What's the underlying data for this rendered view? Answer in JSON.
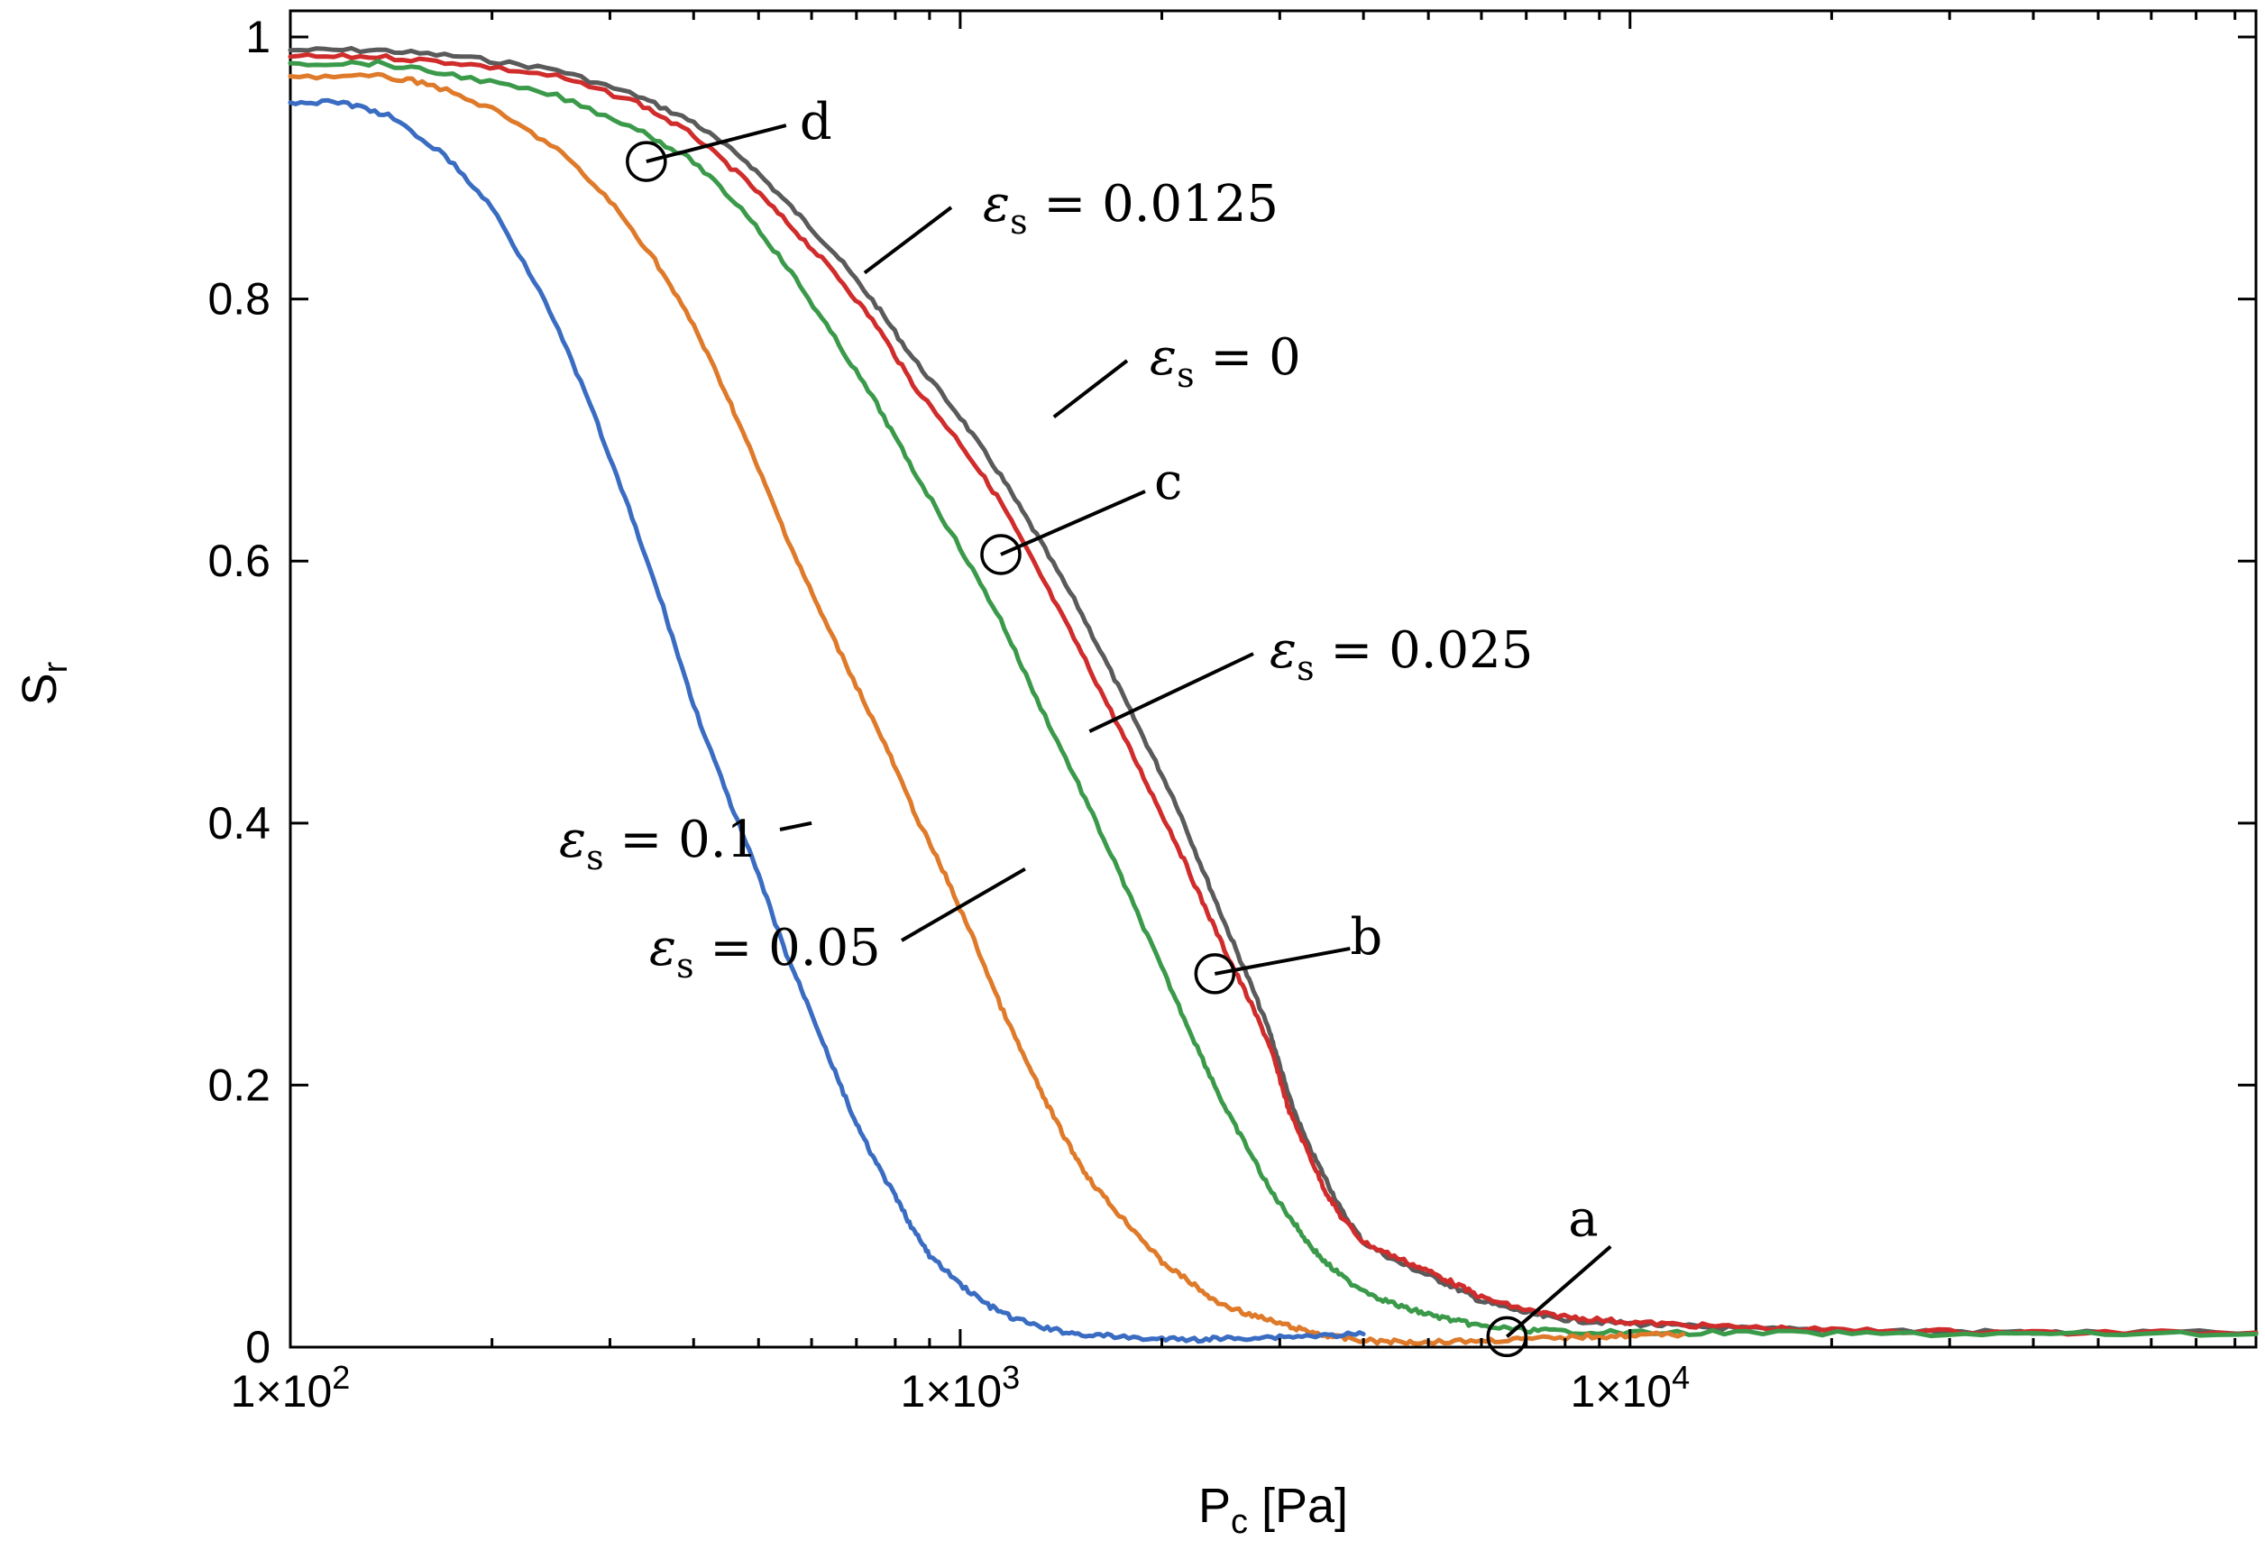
{
  "chart_data": {
    "type": "line",
    "title": "",
    "xlabel": "P",
    "xlabel_sub": "c",
    "xlabel_unit": " [Pa]",
    "ylabel": "S",
    "ylabel_sub": "r",
    "xscale": "log",
    "xlim": [
      100,
      86000
    ],
    "ylim": [
      0,
      1.02
    ],
    "grid": false,
    "legend": "none",
    "x_ticks": [
      {
        "value": 100,
        "base": "1×10",
        "exp": "2"
      },
      {
        "value": 1000,
        "base": "1×10",
        "exp": "3"
      },
      {
        "value": 10000,
        "base": "1×10",
        "exp": "4"
      }
    ],
    "y_ticks": [
      {
        "value": 0,
        "label": "0"
      },
      {
        "value": 0.2,
        "label": "0.2"
      },
      {
        "value": 0.4,
        "label": "0.4"
      },
      {
        "value": 0.6,
        "label": "0.6"
      },
      {
        "value": 0.8,
        "label": "0.8"
      },
      {
        "value": 1,
        "label": "1"
      }
    ],
    "series": [
      {
        "name": "εs = 0",
        "color": "#5a5a5a",
        "x": [
          100,
          135,
          180,
          250,
          330,
          400,
          480,
          560,
          650,
          750,
          850,
          1000,
          1150,
          1300,
          1500,
          1700,
          1900,
          2100,
          2300,
          2500,
          2700,
          2900,
          3000,
          3100,
          3300,
          3500,
          3700,
          4000,
          4500,
          5000,
          5500,
          6000,
          6800,
          7500,
          8500,
          10000,
          12000,
          15000,
          20000,
          30000,
          45000,
          86000
        ],
        "y": [
          0.99,
          0.99,
          0.985,
          0.975,
          0.955,
          0.935,
          0.905,
          0.87,
          0.835,
          0.795,
          0.755,
          0.71,
          0.665,
          0.62,
          0.565,
          0.51,
          0.46,
          0.415,
          0.365,
          0.32,
          0.28,
          0.24,
          0.215,
          0.19,
          0.155,
          0.13,
          0.105,
          0.08,
          0.065,
          0.055,
          0.045,
          0.035,
          0.028,
          0.023,
          0.02,
          0.018,
          0.016,
          0.014,
          0.013,
          0.012,
          0.011,
          0.011
        ]
      },
      {
        "name": "εs = 0.0125",
        "color": "#d02c2c",
        "x": [
          100,
          135,
          180,
          250,
          330,
          400,
          480,
          560,
          650,
          750,
          850,
          1000,
          1150,
          1300,
          1500,
          1700,
          1900,
          2100,
          2300,
          2500,
          2700,
          2900,
          3000,
          3100,
          3300,
          3500,
          3700,
          4000,
          4500,
          5000,
          5500,
          6000,
          6800,
          7500,
          8500,
          10000,
          12000,
          15000,
          20000,
          30000,
          45000,
          86000
        ],
        "y": [
          0.985,
          0.985,
          0.98,
          0.97,
          0.95,
          0.925,
          0.89,
          0.855,
          0.82,
          0.78,
          0.735,
          0.69,
          0.645,
          0.595,
          0.535,
          0.48,
          0.43,
          0.385,
          0.34,
          0.3,
          0.265,
          0.23,
          0.205,
          0.18,
          0.15,
          0.12,
          0.1,
          0.08,
          0.068,
          0.058,
          0.048,
          0.038,
          0.03,
          0.025,
          0.022,
          0.019,
          0.017,
          0.015,
          0.013,
          0.012,
          0.011,
          0.011
        ]
      },
      {
        "name": "εs = 0.025",
        "color": "#3a9a4a",
        "x": [
          100,
          135,
          180,
          250,
          330,
          400,
          480,
          560,
          650,
          750,
          850,
          1000,
          1150,
          1300,
          1500,
          1700,
          1900,
          2100,
          2300,
          2500,
          2700,
          2900,
          3100,
          3300,
          3500,
          3800,
          4200,
          4600,
          5000,
          5500,
          6000,
          7000,
          8000,
          10000,
          15000,
          25000,
          45000,
          86000
        ],
        "y": [
          0.98,
          0.98,
          0.97,
          0.955,
          0.93,
          0.905,
          0.865,
          0.82,
          0.77,
          0.72,
          0.67,
          0.61,
          0.555,
          0.495,
          0.43,
          0.37,
          0.315,
          0.265,
          0.22,
          0.18,
          0.15,
          0.12,
          0.1,
          0.08,
          0.065,
          0.05,
          0.038,
          0.03,
          0.025,
          0.02,
          0.016,
          0.013,
          0.012,
          0.011,
          0.011,
          0.01,
          0.01,
          0.01
        ]
      },
      {
        "name": "εs = 0.05",
        "color": "#de7a2a",
        "x": [
          100,
          135,
          160,
          200,
          250,
          300,
          350,
          400,
          450,
          500,
          560,
          620,
          700,
          780,
          860,
          950,
          1050,
          1150,
          1250,
          1350,
          1450,
          1550,
          1700,
          1850,
          2000,
          2200,
          2400,
          2700,
          3000,
          3300,
          3600,
          4000,
          4500,
          5000,
          6000,
          7000,
          8500,
          10000,
          12000
        ],
        "y": [
          0.97,
          0.97,
          0.965,
          0.945,
          0.915,
          0.875,
          0.83,
          0.78,
          0.725,
          0.67,
          0.61,
          0.56,
          0.505,
          0.455,
          0.405,
          0.36,
          0.31,
          0.26,
          0.22,
          0.185,
          0.155,
          0.13,
          0.105,
          0.085,
          0.065,
          0.05,
          0.035,
          0.025,
          0.018,
          0.012,
          0.008,
          0.005,
          0.004,
          0.004,
          0.005,
          0.006,
          0.008,
          0.009,
          0.01
        ]
      },
      {
        "name": "εs = 0.1",
        "color": "#3a6cc2",
        "x": [
          100,
          120,
          140,
          170,
          200,
          240,
          280,
          320,
          360,
          400,
          450,
          500,
          550,
          600,
          650,
          700,
          750,
          800,
          850,
          900,
          1000,
          1100,
          1200,
          1350,
          1500,
          1700,
          2000,
          2300,
          2600,
          3000,
          3500,
          4000
        ],
        "y": [
          0.95,
          0.95,
          0.94,
          0.91,
          0.87,
          0.8,
          0.72,
          0.64,
          0.565,
          0.49,
          0.42,
          0.36,
          0.3,
          0.255,
          0.21,
          0.17,
          0.14,
          0.115,
          0.09,
          0.07,
          0.048,
          0.032,
          0.022,
          0.014,
          0.01,
          0.008,
          0.006,
          0.006,
          0.007,
          0.008,
          0.009,
          0.01
        ]
      }
    ],
    "markers": [
      {
        "label": "a",
        "x": 6550,
        "y": 0.008
      },
      {
        "label": "b",
        "x": 2400,
        "y": 0.285
      },
      {
        "label": "c",
        "x": 1150,
        "y": 0.605
      },
      {
        "label": "d",
        "x": 340,
        "y": 0.905
      }
    ],
    "annotations": [
      {
        "symbol": "ε",
        "sub": "s",
        "text": " = 0.0125",
        "x": 720,
        "y": 0.82
      },
      {
        "symbol": "ε",
        "sub": "s",
        "text": " = 0",
        "x": 1380,
        "y": 0.71
      },
      {
        "symbol": "ε",
        "sub": "s",
        "text": " = 0.025",
        "x": 1560,
        "y": 0.47
      },
      {
        "symbol": "ε",
        "sub": "s",
        "text": " = 0.1",
        "x": 600,
        "y": 0.4
      },
      {
        "symbol": "ε",
        "sub": "s",
        "text": " = 0.05",
        "x": 1250,
        "y": 0.365
      }
    ]
  }
}
